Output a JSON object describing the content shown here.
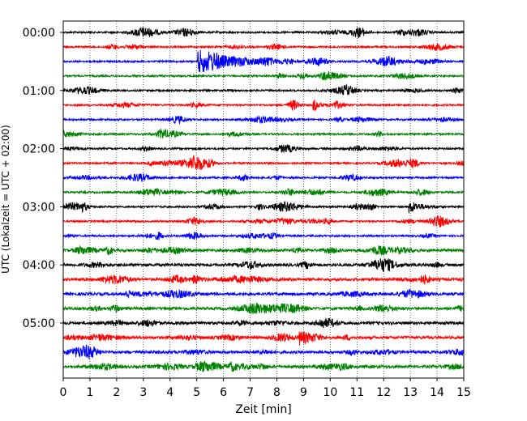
{
  "chart_data": {
    "type": "line",
    "title": "",
    "xlabel": "Zeit  [min]",
    "ylabel": "UTC (Lokalzeit = UTC + 02:00)",
    "xlim": [
      0,
      15
    ],
    "x_ticks": [
      0,
      1,
      2,
      3,
      4,
      5,
      6,
      7,
      8,
      9,
      10,
      11,
      12,
      13,
      14,
      15
    ],
    "x_tick_labels": [
      "0",
      "1",
      "2",
      "3",
      "4",
      "5",
      "6",
      "7",
      "8",
      "9",
      "10",
      "11",
      "12",
      "13",
      "14",
      "15"
    ],
    "y_tick_labels": [
      "00:00",
      "01:00",
      "02:00",
      "03:00",
      "04:00",
      "05:00"
    ],
    "y_tick_traces": [
      0,
      4,
      8,
      12,
      16,
      20
    ],
    "grid": "vertical dotted",
    "trace_count": 24,
    "trace_interval_min": 15,
    "color_cycle": [
      "#000000",
      "#ff0000",
      "#0000ff",
      "#008000"
    ],
    "events": [
      {
        "trace": 2,
        "start_min": 5.1,
        "duration_min": 2.5,
        "label": ""
      },
      {
        "trace": 5,
        "start_min": 9.4,
        "duration_min": 0.4,
        "label": ""
      },
      {
        "trace": 12,
        "start_min": 13.0,
        "duration_min": 0.9,
        "label": ""
      },
      {
        "trace": 17,
        "start_min": 4.9,
        "duration_min": 0.4,
        "label": ""
      },
      {
        "trace": 21,
        "start_min": 8.9,
        "duration_min": 0.5,
        "label": ""
      }
    ]
  }
}
